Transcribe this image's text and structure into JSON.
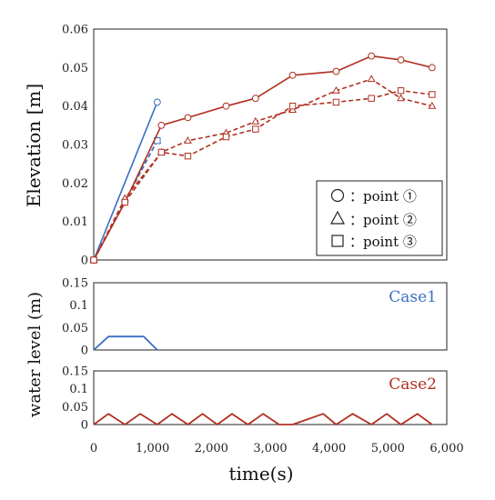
{
  "colors": {
    "blue": "#3a6fc4",
    "red": "#b03020",
    "axis": "#222222"
  },
  "chart_data": [
    {
      "type": "line",
      "title": "",
      "xlabel": "",
      "ylabel": "Elevation [m]",
      "xlim": [
        0,
        6000
      ],
      "ylim": [
        0,
        0.06
      ],
      "y_ticks": [
        "0",
        "0.01",
        "0.02",
        "0.03",
        "0.04",
        "0.05",
        "0.06"
      ],
      "grid": false,
      "legend": {
        "placement": "bottom-right",
        "entries": [
          {
            "marker": "circle",
            "label": "：point ①"
          },
          {
            "marker": "triangle",
            "label": "：point ②"
          },
          {
            "marker": "square",
            "label": "：point ③"
          }
        ]
      },
      "series": [
        {
          "case": "Case1",
          "point": "①",
          "marker": "circle",
          "style": "solid",
          "color": "blue",
          "x": [
            0,
            1080
          ],
          "y": [
            0,
            0.041
          ]
        },
        {
          "case": "Case1",
          "point": "②",
          "marker": "triangle",
          "style": "dashed",
          "color": "blue",
          "x": [
            0,
            1080
          ],
          "y": [
            0,
            0.031
          ]
        },
        {
          "case": "Case1",
          "point": "③",
          "marker": "square",
          "style": "dashed",
          "color": "blue",
          "x": [
            0,
            1080
          ],
          "y": [
            0,
            0.031
          ]
        },
        {
          "case": "Case2",
          "point": "①",
          "marker": "circle",
          "style": "solid",
          "color": "red",
          "x": [
            0,
            530,
            1150,
            1600,
            2250,
            2750,
            3380,
            4120,
            4720,
            5220,
            5750
          ],
          "y": [
            0,
            0.015,
            0.035,
            0.037,
            0.04,
            0.042,
            0.048,
            0.049,
            0.053,
            0.052,
            0.05
          ]
        },
        {
          "case": "Case2",
          "point": "②",
          "marker": "triangle",
          "style": "dashed",
          "color": "red",
          "x": [
            0,
            530,
            1150,
            1600,
            2250,
            2750,
            3380,
            4120,
            4720,
            5220,
            5750
          ],
          "y": [
            0,
            0.016,
            0.028,
            0.031,
            0.033,
            0.036,
            0.039,
            0.044,
            0.047,
            0.042,
            0.04
          ]
        },
        {
          "case": "Case2",
          "point": "③",
          "marker": "square",
          "style": "dashed",
          "color": "red",
          "x": [
            0,
            530,
            1150,
            1600,
            2250,
            2750,
            3380,
            4120,
            4720,
            5220,
            5750
          ],
          "y": [
            0,
            0.015,
            0.028,
            0.027,
            0.032,
            0.034,
            0.04,
            0.041,
            0.042,
            0.044,
            0.043
          ]
        }
      ]
    },
    {
      "type": "line",
      "title": "",
      "label": "Case1",
      "xlim": [
        0,
        6000
      ],
      "ylim": [
        0,
        0.15
      ],
      "y_ticks": [
        "0",
        "0.05",
        "0.1",
        "0.15"
      ],
      "grid": false,
      "series": [
        {
          "color": "blue",
          "x": [
            0,
            250,
            850,
            1080
          ],
          "y": [
            0,
            0.03,
            0.03,
            0
          ]
        }
      ]
    },
    {
      "type": "line",
      "title": "",
      "label": "Case2",
      "xlim": [
        0,
        6000
      ],
      "ylim": [
        0,
        0.15
      ],
      "y_ticks": [
        "0",
        "0.05",
        "0.1",
        "0.15"
      ],
      "grid": false,
      "series": [
        {
          "color": "red",
          "x": [
            0,
            250,
            530,
            790,
            1080,
            1330,
            1600,
            1850,
            2100,
            2350,
            2620,
            2880,
            3150,
            3380,
            3900,
            4120,
            4400,
            4720,
            4980,
            5220,
            5500,
            5750
          ],
          "y": [
            0,
            0.03,
            0,
            0.03,
            0,
            0.03,
            0,
            0.03,
            0,
            0.03,
            0,
            0.03,
            0,
            0,
            0.03,
            0,
            0.03,
            0,
            0.03,
            0,
            0.03,
            0
          ]
        }
      ]
    }
  ],
  "shared_axis": {
    "xlabel": "time(s)",
    "ylabel": "water level (m)",
    "x_ticks": [
      "0",
      "1,000",
      "2,000",
      "3,000",
      "4,000",
      "5,000",
      "6,000"
    ]
  }
}
